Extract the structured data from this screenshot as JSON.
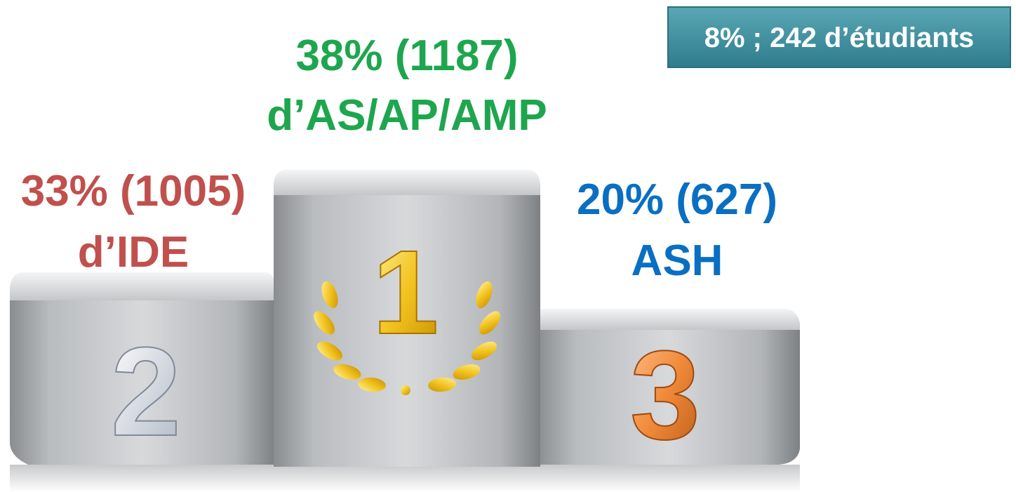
{
  "badge": "8% ; 242 d’étudiants",
  "podium": [
    {
      "place": "1",
      "line1": "38% (1187)",
      "line2": "d’AS/AP/AMP"
    },
    {
      "place": "2",
      "line1": "33% (1005)",
      "line2": "d’IDE"
    },
    {
      "place": "3",
      "line1": "20% (627)",
      "line2": "ASH"
    }
  ]
}
